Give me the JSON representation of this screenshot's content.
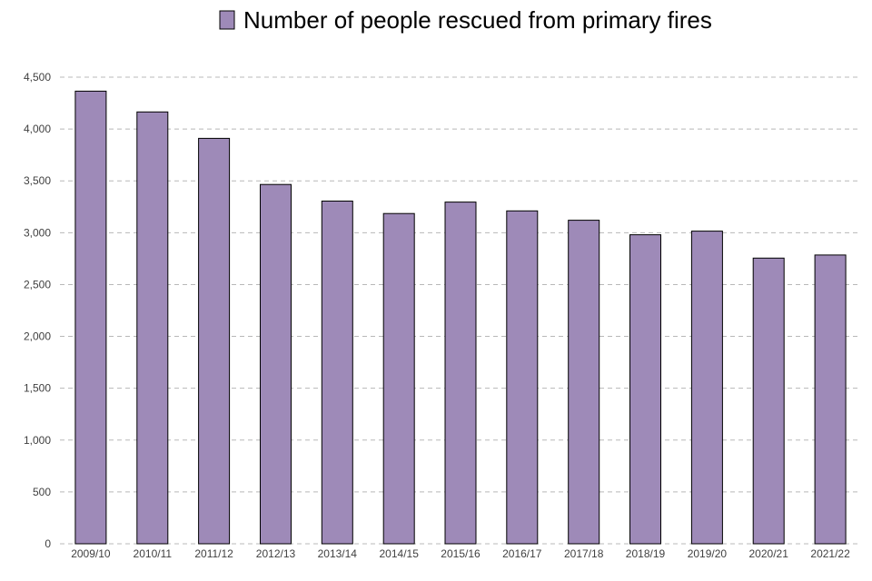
{
  "chart_data": {
    "type": "bar",
    "title": "",
    "xlabel": "",
    "ylabel": "",
    "legend": {
      "position": "top-center",
      "entries": [
        {
          "label": "Number of people rescued from primary fires",
          "color": "#9e8ab8"
        }
      ]
    },
    "categories": [
      "2009/10",
      "2010/11",
      "2011/12",
      "2012/13",
      "2013/14",
      "2014/15",
      "2015/16",
      "2016/17",
      "2017/18",
      "2018/19",
      "2019/20",
      "2020/21",
      "2021/22"
    ],
    "series": [
      {
        "name": "Number of people rescued from primary fires",
        "color": "#9e8ab8",
        "values": [
          4365,
          4165,
          3910,
          3465,
          3305,
          3185,
          3295,
          3210,
          3120,
          2980,
          3015,
          2755,
          2785
        ]
      }
    ],
    "ylim": [
      0,
      4500
    ],
    "yticks": [
      0,
      500,
      1000,
      1500,
      2000,
      2500,
      3000,
      3500,
      4000,
      4500
    ],
    "ytick_labels": [
      "0",
      "500",
      "1,000",
      "1,500",
      "2,000",
      "2,500",
      "3,000",
      "3,500",
      "4,000",
      "4,500"
    ],
    "grid": true
  }
}
